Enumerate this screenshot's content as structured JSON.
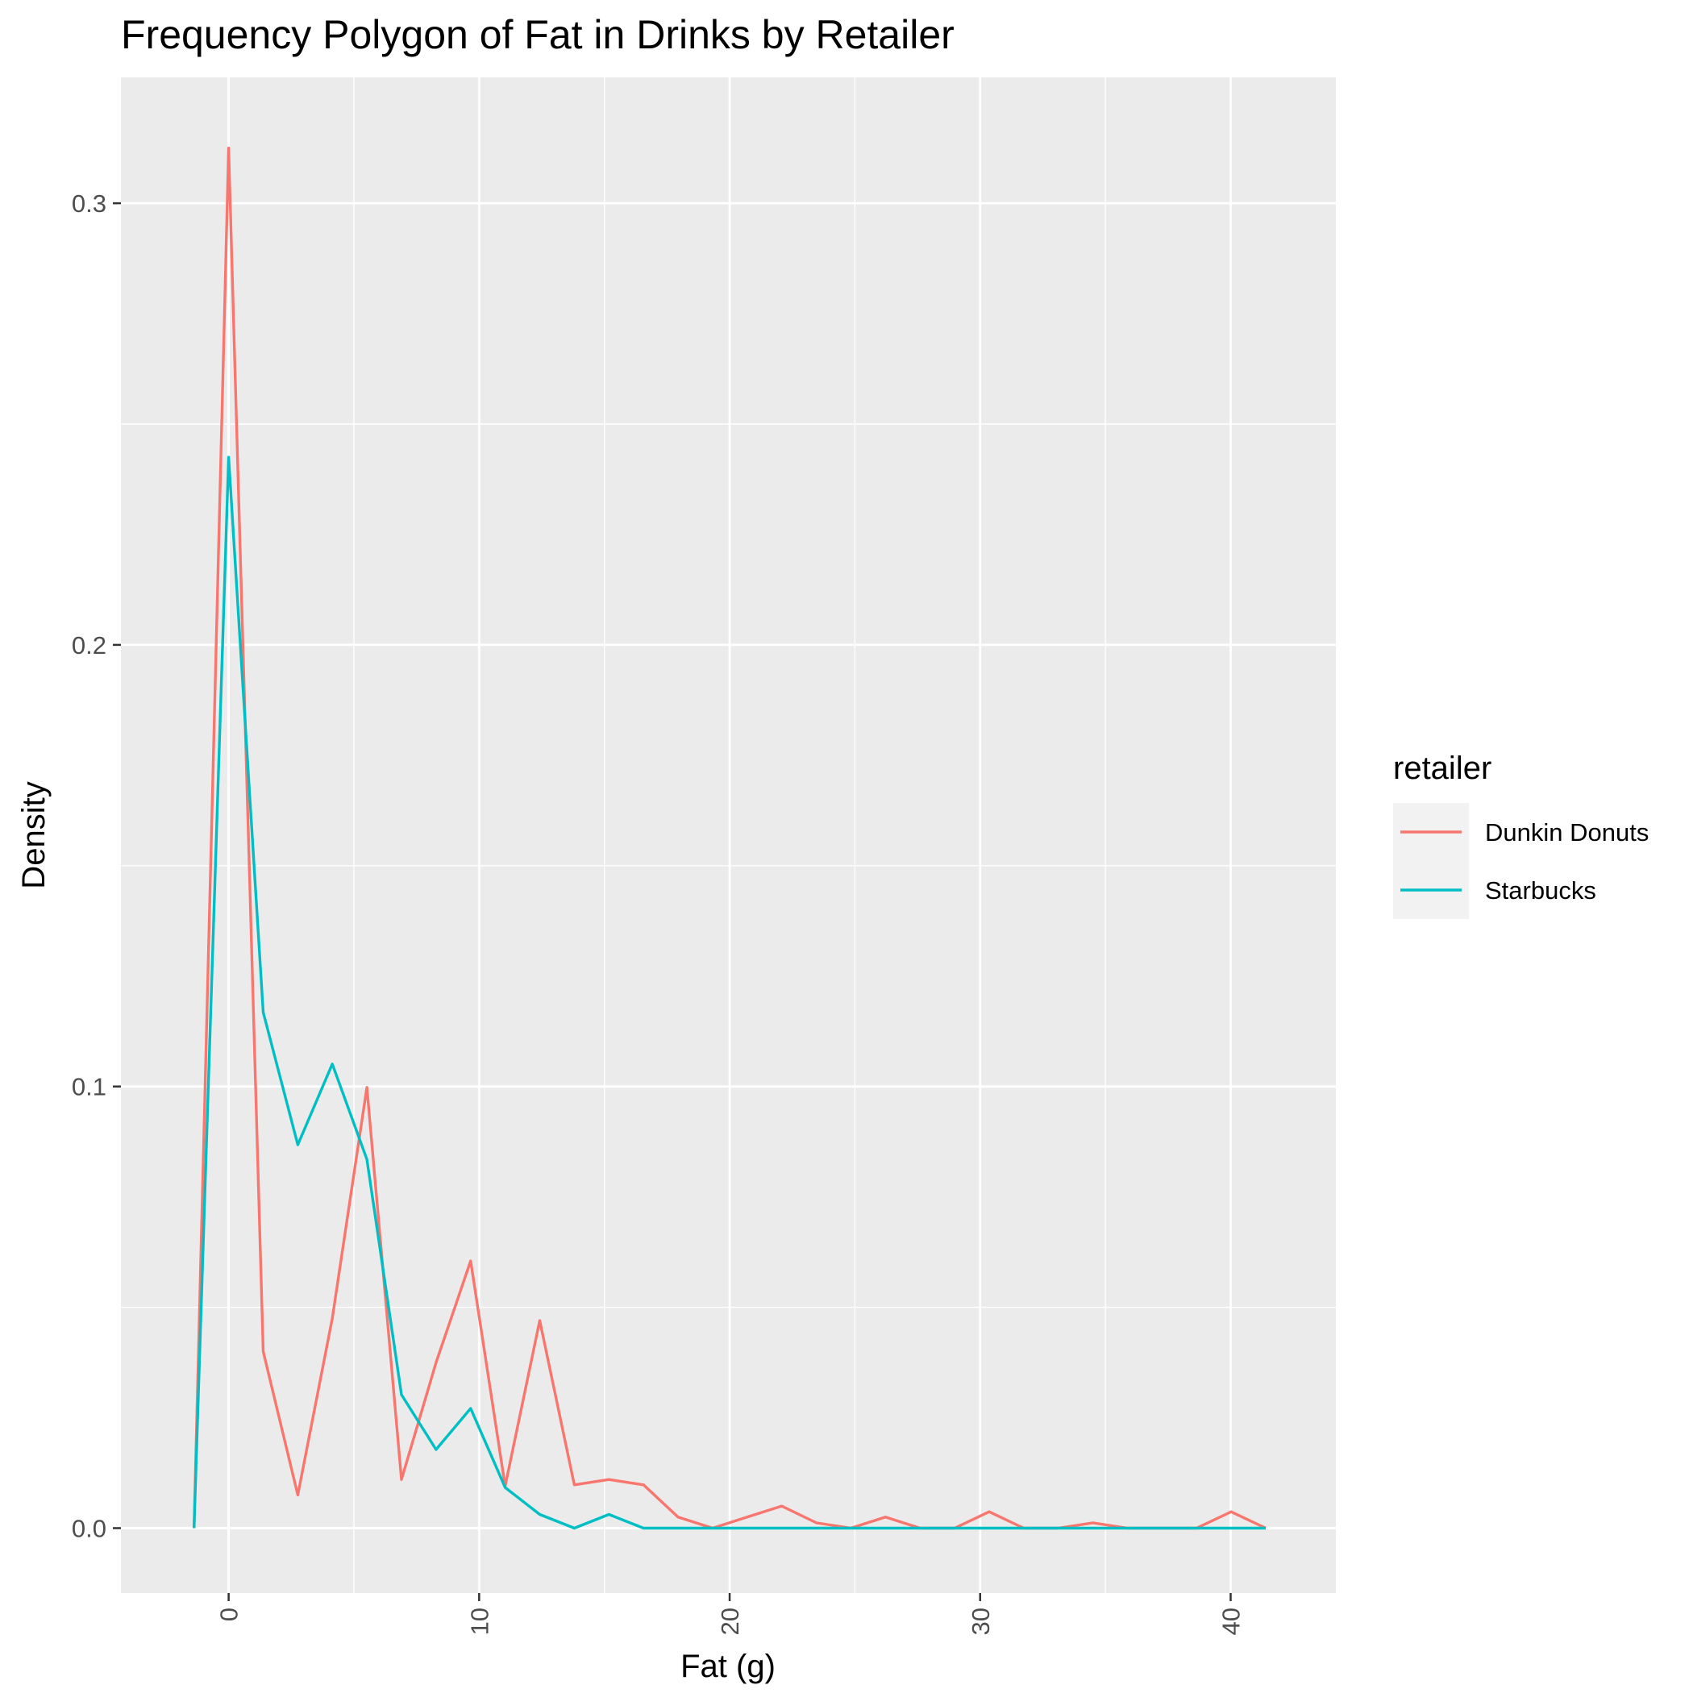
{
  "chart_data": {
    "type": "line",
    "title": "Frequency Polygon of Fat in Drinks by Retailer",
    "xlabel": "Fat (g)",
    "ylabel": "Density",
    "xlim": [
      -4.3,
      44.2
    ],
    "ylim": [
      -0.0147,
      0.3285
    ],
    "x_ticks": [
      0,
      10,
      20,
      30,
      40
    ],
    "x_tick_labels": [
      "0",
      "10",
      "20",
      "30",
      "40"
    ],
    "y_ticks": [
      0.0,
      0.1,
      0.2,
      0.3
    ],
    "y_tick_labels": [
      "0.0",
      "0.1",
      "0.2",
      "0.3"
    ],
    "grid": true,
    "legend": {
      "title": "retailer",
      "position": "right"
    },
    "x": [
      -1.38,
      0.0,
      1.38,
      2.76,
      4.14,
      5.52,
      6.9,
      8.28,
      9.66,
      11.04,
      12.42,
      13.8,
      15.18,
      16.56,
      17.94,
      19.32,
      20.7,
      22.08,
      23.46,
      24.84,
      26.22,
      27.6,
      28.98,
      30.36,
      31.74,
      33.12,
      34.5,
      35.88,
      37.26,
      38.64,
      40.02,
      41.4
    ],
    "series": [
      {
        "name": "Dunkin Donuts",
        "color": "#F8766D",
        "values": [
          0.0,
          0.3125,
          0.04,
          0.0075,
          0.0475,
          0.0998,
          0.011,
          0.0375,
          0.0605,
          0.0095,
          0.047,
          0.0098,
          0.011,
          0.0098,
          0.0025,
          0.0,
          0.0025,
          0.005,
          0.0012,
          0.0,
          0.0025,
          0.0,
          0.0,
          0.0037,
          0.0,
          0.0,
          0.0012,
          0.0,
          0.0,
          0.0,
          0.0037,
          0.0
        ]
      },
      {
        "name": "Starbucks",
        "color": "#00BFC4",
        "values": [
          0.0,
          0.2425,
          0.1168,
          0.0868,
          0.1051,
          0.0835,
          0.0302,
          0.0178,
          0.0271,
          0.0092,
          0.0031,
          0.0,
          0.0031,
          0.0,
          0.0,
          0.0,
          0.0,
          0.0,
          0.0,
          0.0,
          0.0,
          0.0,
          0.0,
          0.0,
          0.0,
          0.0,
          0.0,
          0.0,
          0.0,
          0.0,
          0.0,
          0.0
        ]
      }
    ]
  }
}
